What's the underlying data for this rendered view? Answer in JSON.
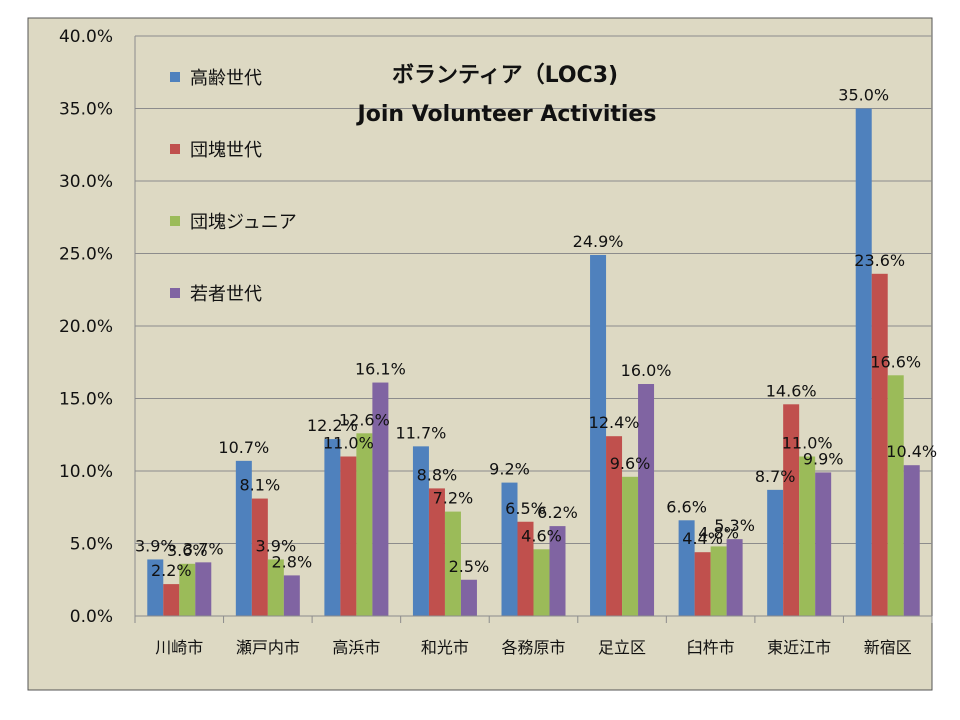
{
  "chart_data": {
    "type": "bar",
    "title": "ボランティア（LOC3)",
    "subtitle": "Join Volunteer Activities",
    "categories": [
      "川崎市",
      "瀬戸内市",
      "高浜市",
      "和光市",
      "各務原市",
      "足立区",
      "臼杵市",
      "東近江市",
      "新宿区"
    ],
    "series": [
      {
        "name": "高齢世代",
        "color": "#4F81BD",
        "values": [
          3.9,
          10.7,
          12.2,
          11.7,
          9.2,
          24.9,
          6.6,
          8.7,
          35.0
        ]
      },
      {
        "name": "団塊世代",
        "color": "#C0504D",
        "values": [
          2.2,
          8.1,
          11.0,
          8.8,
          6.5,
          12.4,
          4.4,
          14.6,
          23.6
        ]
      },
      {
        "name": "団塊ジュニア",
        "color": "#9BBB59",
        "values": [
          3.6,
          3.9,
          12.6,
          7.2,
          4.6,
          9.6,
          4.8,
          11.0,
          16.6
        ]
      },
      {
        "name": "若者世代",
        "color": "#8064A2",
        "values": [
          3.7,
          2.8,
          16.1,
          2.5,
          6.2,
          16.0,
          5.3,
          9.9,
          10.4
        ]
      }
    ],
    "data_labels": [
      [
        "3.9%",
        "10.7%",
        "12.2%",
        "11.7%",
        "9.2%",
        "24.9%",
        "6.6%",
        "8.7%",
        "35.0%"
      ],
      [
        "2.2%",
        "8.1%",
        "11.0%",
        "8.8%",
        "6.5%",
        "12.4%",
        "4.4%",
        "14.6%",
        "23.6%"
      ],
      [
        "3.6%",
        "3.9%",
        "12.6%",
        "7.2%",
        "4.6%",
        "9.6%",
        "4.8%",
        "11.0%",
        "16.6%"
      ],
      [
        "3.7%",
        "2.8%",
        "16.1%",
        "2.5%",
        "6.2%",
        "16.0%",
        "5.3%",
        "9.9%",
        "10.4%"
      ]
    ],
    "y_ticks": [
      "0.0%",
      "5.0%",
      "10.0%",
      "15.0%",
      "20.0%",
      "25.0%",
      "30.0%",
      "35.0%",
      "40.0%"
    ],
    "ylim": [
      0,
      40
    ],
    "y_unit": "%",
    "grid": true,
    "legend_position": "top-left",
    "background": "#DDD9C3"
  }
}
